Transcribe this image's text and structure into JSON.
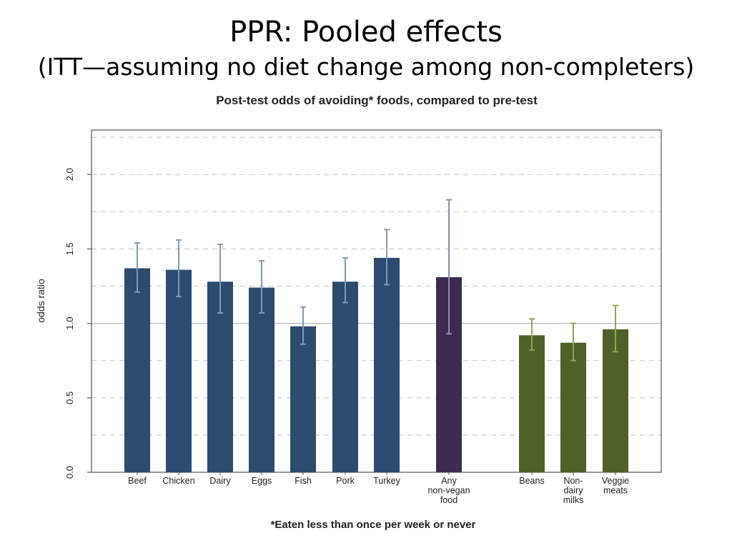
{
  "slide": {
    "title": "PPR:  Pooled effects",
    "subtitle": "(ITT—assuming no diet change among non-completers)"
  },
  "chart_data": {
    "type": "bar",
    "title": "Post-test odds of avoiding* foods, compared to pre-test",
    "xlabel": "",
    "ylabel": "odds ratio",
    "ylim": [
      0,
      2.3
    ],
    "yticks": [
      "0.0",
      "0.5",
      "1.0",
      "1.5",
      "2.0"
    ],
    "grid": true,
    "reference_line": 1.0,
    "footnote": "*Eaten less than once per week or never",
    "colors": {
      "animal": "#2c4b6e",
      "animal_err": "#7c9bbb",
      "any": "#3d2b4f",
      "any_err": "#9a86bc",
      "plant": "#4e6129",
      "plant_err": "#8ea453",
      "grid": "#cccccc",
      "axis": "#555555"
    },
    "categories": [
      {
        "label": [
          "Beef"
        ],
        "value": 1.37,
        "ci": [
          1.21,
          1.54
        ],
        "group": "animal"
      },
      {
        "label": [
          "Chicken"
        ],
        "value": 1.36,
        "ci": [
          1.18,
          1.56
        ],
        "group": "animal"
      },
      {
        "label": [
          "Dairy"
        ],
        "value": 1.28,
        "ci": [
          1.07,
          1.53
        ],
        "group": "animal"
      },
      {
        "label": [
          "Eggs"
        ],
        "value": 1.24,
        "ci": [
          1.07,
          1.42
        ],
        "group": "animal"
      },
      {
        "label": [
          "Fish"
        ],
        "value": 0.98,
        "ci": [
          0.86,
          1.11
        ],
        "group": "animal"
      },
      {
        "label": [
          "Pork"
        ],
        "value": 1.28,
        "ci": [
          1.14,
          1.44
        ],
        "group": "animal"
      },
      {
        "label": [
          "Turkey"
        ],
        "value": 1.44,
        "ci": [
          1.26,
          1.63
        ],
        "group": "animal"
      },
      {
        "label": [
          "Any",
          "non-vegan",
          "food"
        ],
        "value": 1.31,
        "ci": [
          0.93,
          1.83
        ],
        "group": "any"
      },
      {
        "label": [
          "Beans"
        ],
        "value": 0.92,
        "ci": [
          0.82,
          1.03
        ],
        "group": "plant"
      },
      {
        "label": [
          "Non-",
          "dairy",
          "milks"
        ],
        "value": 0.87,
        "ci": [
          0.75,
          1.0
        ],
        "group": "plant"
      },
      {
        "label": [
          "Veggie",
          "meats"
        ],
        "value": 0.96,
        "ci": [
          0.81,
          1.12
        ],
        "group": "plant"
      }
    ]
  }
}
